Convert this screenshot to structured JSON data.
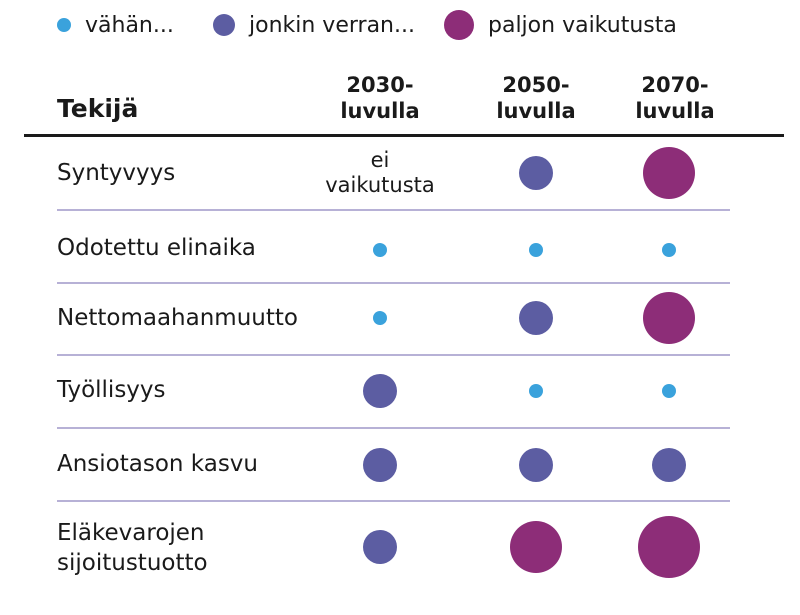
{
  "legend": [
    {
      "label": "vähän...",
      "level": "small",
      "color": "#3aa2dc"
    },
    {
      "label": "jonkin verran...",
      "level": "medium",
      "color": "#5c5da2"
    },
    {
      "label": "paljon vaikutusta",
      "level": "large",
      "color": "#8d2d78"
    }
  ],
  "table": {
    "header_label": "Tekijä",
    "columns": [
      {
        "line1": "2030-",
        "line2": "luvulla"
      },
      {
        "line1": "2050-",
        "line2": "luvulla"
      },
      {
        "line1": "2070-",
        "line2": "luvulla"
      }
    ],
    "rows": [
      {
        "label": "Syntyvyys",
        "cells": [
          {
            "text": "ei vaikutusta"
          },
          {
            "level": "medium"
          },
          {
            "level": "large"
          }
        ]
      },
      {
        "label": "Odotettu elinaika",
        "cells": [
          {
            "level": "small"
          },
          {
            "level": "small"
          },
          {
            "level": "small"
          }
        ]
      },
      {
        "label": "Nettomaahanmuutto",
        "cells": [
          {
            "level": "small"
          },
          {
            "level": "medium"
          },
          {
            "level": "large"
          }
        ]
      },
      {
        "label": "Työllisyys",
        "cells": [
          {
            "level": "medium"
          },
          {
            "level": "small"
          },
          {
            "level": "small"
          }
        ]
      },
      {
        "label": "Ansiotason kasvu",
        "cells": [
          {
            "level": "medium"
          },
          {
            "level": "medium"
          },
          {
            "level": "medium"
          }
        ]
      },
      {
        "label": "Eläkevarojen sijoitustuotto",
        "cells": [
          {
            "level": "medium"
          },
          {
            "level": "large"
          },
          {
            "level": "xlarge"
          }
        ]
      }
    ]
  },
  "colors": {
    "small": "#3aa2dc",
    "medium": "#5c5da2",
    "large": "#8d2d78",
    "rule": "#b7b1d6"
  }
}
